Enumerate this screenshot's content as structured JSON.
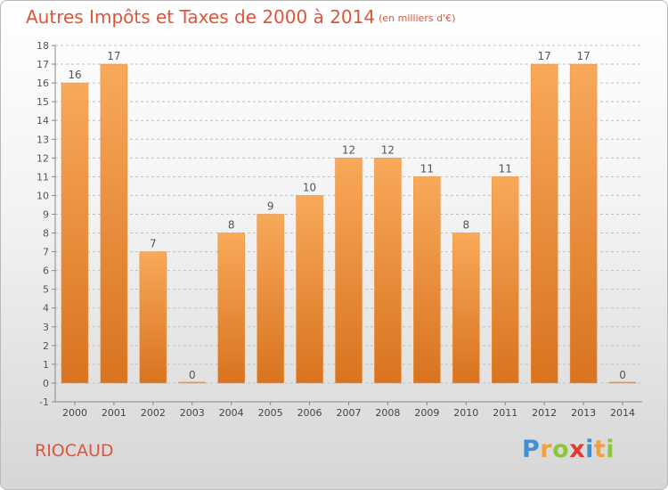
{
  "title": "Autres Impôts et Taxes de 2000 à 2014",
  "unit": "(en milliers d'€)",
  "town": "RIOCAUD",
  "brand": "Proxiti",
  "colors": {
    "bar_top": "#f8a95a",
    "bar_bottom": "#d9731f",
    "title": "#e0543a",
    "axis": "#888888",
    "grid": "#bfbfbf"
  },
  "chart_data": {
    "type": "bar",
    "categories": [
      "2000",
      "2001",
      "2002",
      "2003",
      "2004",
      "2005",
      "2006",
      "2007",
      "2008",
      "2009",
      "2010",
      "2011",
      "2012",
      "2013",
      "2014"
    ],
    "values": [
      16,
      17,
      7,
      0,
      8,
      9,
      10,
      12,
      12,
      11,
      8,
      11,
      17,
      17,
      0
    ],
    "ylim": [
      -1,
      18
    ],
    "yticks": [
      -1,
      0,
      1,
      2,
      3,
      4,
      5,
      6,
      7,
      8,
      9,
      10,
      11,
      12,
      13,
      14,
      15,
      16,
      17,
      18
    ],
    "grid": "dashed horizontal",
    "legend": "none"
  }
}
